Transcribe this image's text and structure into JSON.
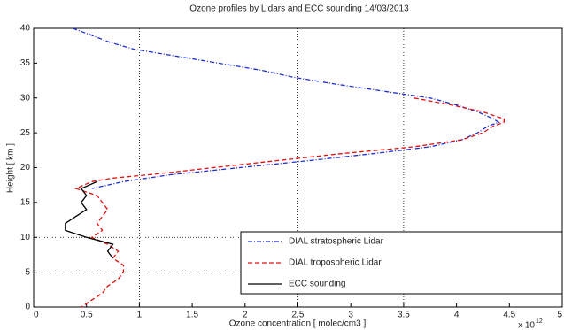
{
  "chart_data": {
    "type": "line",
    "title": "Ozone profiles by Lidars and ECC sounding   14/03/2013",
    "x_label": "Ozone concentration [ molec/cm3 ]",
    "y_label": "Height [ km ]",
    "x_multiplier": "x 10",
    "x_exponent": "12",
    "xlim": [
      0,
      5
    ],
    "xticks": [
      0,
      0.5,
      1,
      1.5,
      2,
      2.5,
      3,
      3.5,
      4,
      4.5,
      5
    ],
    "ylim": [
      0,
      40
    ],
    "yticks": [
      0,
      5,
      10,
      15,
      20,
      25,
      30,
      35,
      40
    ],
    "x_reference_lines": [
      1,
      2.5,
      3.5
    ],
    "y_reference_lines": [
      5,
      10
    ],
    "legend": "bottom-right",
    "series": [
      {
        "name": "DIAL stratospheric Lidar",
        "color": "#1f2fd0",
        "x": [
          0.37,
          0.55,
          0.72,
          0.95,
          1.35,
          1.75,
          2.15,
          2.45,
          2.85,
          3.3,
          3.75,
          4.0,
          4.2,
          4.35,
          4.4,
          4.3,
          4.2,
          4.05,
          3.75,
          3.2,
          2.6,
          1.95,
          1.3,
          0.85,
          0.55
        ],
        "values": [
          40,
          39,
          38,
          37,
          36,
          35,
          34,
          33,
          32,
          31,
          30,
          29,
          28,
          27,
          26.5,
          26,
          25,
          24,
          23,
          22,
          21,
          20,
          19,
          18,
          17
        ]
      },
      {
        "name": "DIAL tropospheric Lidar",
        "color": "#e01010",
        "x": [
          3.6,
          3.95,
          4.25,
          4.45,
          4.45,
          4.35,
          4.25,
          4.05,
          3.6,
          2.9,
          2.3,
          1.7,
          1.1,
          0.75,
          0.55,
          0.4,
          0.6,
          0.65,
          0.7,
          0.65,
          0.6,
          0.65,
          0.55,
          0.7,
          0.8,
          0.75,
          0.85,
          0.85,
          0.8,
          0.7,
          0.65,
          0.55,
          0.45
        ],
        "values": [
          30,
          29,
          28,
          27,
          26.5,
          26,
          25,
          24,
          23,
          22,
          21,
          20,
          19,
          18.5,
          18,
          17,
          16,
          15,
          14,
          13,
          12,
          11,
          10,
          9,
          8,
          7,
          6,
          5,
          4,
          3,
          2,
          1,
          0
        ]
      },
      {
        "name": "ECC sounding",
        "color": "#000000",
        "x": [
          0.6,
          0.45,
          0.5,
          0.45,
          0.5,
          0.4,
          0.3,
          0.3,
          0.5,
          0.75,
          0.7,
          0.75
        ],
        "values": [
          18,
          17,
          16,
          15,
          14,
          13,
          12,
          11,
          10,
          9,
          8,
          7
        ]
      }
    ]
  }
}
